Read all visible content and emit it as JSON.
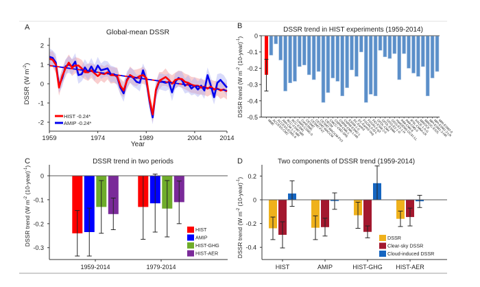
{
  "chart_data": [
    {
      "panel": "A",
      "type": "line",
      "title": "Global-mean DSSR",
      "xlabel": "Year",
      "ylabel": "DSSR (W m⁻²)",
      "xlim": [
        1959,
        2014
      ],
      "ylim": [
        -2.5,
        2.5
      ],
      "xticks": [
        1959,
        1974,
        1989,
        2004,
        2014
      ],
      "yticks": [
        2,
        1,
        0,
        -1,
        -2
      ],
      "legend_position": "bottom-left",
      "series": [
        {
          "name": "HIST",
          "legend": "HIST  -0.24*",
          "color": "#ff0000",
          "band_color": "#f4a6a6",
          "x": [
            1959,
            1960,
            1961,
            1962,
            1963,
            1964,
            1965,
            1966,
            1967,
            1968,
            1969,
            1970,
            1971,
            1972,
            1973,
            1974,
            1975,
            1976,
            1977,
            1978,
            1979,
            1980,
            1981,
            1982,
            1983,
            1984,
            1985,
            1986,
            1987,
            1988,
            1989,
            1990,
            1991,
            1992,
            1993,
            1994,
            1995,
            1996,
            1997,
            1998,
            1999,
            2000,
            2001,
            2002,
            2003,
            2004,
            2005,
            2006,
            2007,
            2008,
            2009,
            2010,
            2011,
            2012,
            2013,
            2014
          ],
          "y": [
            1.3,
            1.25,
            1.0,
            -0.2,
            0.4,
            0.8,
            1.1,
            0.85,
            0.95,
            0.95,
            0.8,
            0.6,
            0.6,
            0.7,
            0.55,
            0.4,
            0.55,
            0.5,
            0.6,
            0.45,
            0.45,
            0.4,
            -0.1,
            -0.35,
            0.15,
            0.45,
            0.35,
            0.3,
            0.4,
            0.45,
            0.3,
            -0.8,
            -1.6,
            -0.3,
            0.15,
            0.25,
            0.35,
            0.2,
            0.0,
            0.2,
            0.25,
            0.25,
            0.1,
            0.05,
            -0.05,
            -0.1,
            -0.1,
            -0.2,
            -0.15,
            -0.25,
            -0.15,
            -0.3,
            -0.25,
            -0.35,
            -0.3,
            -0.4
          ],
          "trend_start": 0.95,
          "trend_end": -0.35
        },
        {
          "name": "AMIP",
          "legend": "AMIP  -0.24*",
          "color": "#0000ee",
          "band_color": "#aab0f4",
          "x": [
            1959,
            1960,
            1961,
            1962,
            1963,
            1964,
            1965,
            1966,
            1967,
            1968,
            1969,
            1970,
            1971,
            1972,
            1973,
            1974,
            1975,
            1976,
            1977,
            1978,
            1979,
            1980,
            1981,
            1982,
            1983,
            1984,
            1985,
            1986,
            1987,
            1988,
            1989,
            1990,
            1991,
            1992,
            1993,
            1994,
            1995,
            1996,
            1997,
            1998,
            1999,
            2000,
            2001,
            2002,
            2003,
            2004,
            2005,
            2006,
            2007,
            2008,
            2009,
            2010,
            2011,
            2012,
            2013,
            2014
          ],
          "y": [
            1.4,
            1.35,
            1.1,
            -0.1,
            0.3,
            0.9,
            1.0,
            0.9,
            1.15,
            0.45,
            0.5,
            0.85,
            0.6,
            0.9,
            0.6,
            0.95,
            0.7,
            0.75,
            0.8,
            0.5,
            0.5,
            0.35,
            -0.2,
            -0.5,
            0.2,
            0.45,
            0.3,
            0.1,
            0.05,
            0.7,
            0.2,
            -0.9,
            -1.75,
            -0.35,
            0.1,
            0.1,
            0.05,
            0.1,
            -0.45,
            0.1,
            0.3,
            0.2,
            -0.1,
            0.0,
            -0.25,
            -0.1,
            -0.3,
            -0.1,
            -0.35,
            0.45,
            -0.1,
            -0.7,
            0.05,
            0.2,
            0.0,
            -0.2
          ],
          "trend_start": 0.95,
          "trend_end": -0.35
        }
      ],
      "panel_label": "A"
    },
    {
      "panel": "B",
      "type": "bar",
      "title": "DSSR trend in HIST experiments (1959-2014)",
      "ylabel": "DSSR trend (W m⁻² (10-year)⁻¹)",
      "ylim": [
        -0.5,
        0
      ],
      "yticks": [
        0,
        -0.1,
        -0.2,
        -0.3,
        -0.4,
        -0.5
      ],
      "categories": [
        "MME",
        "ACCESS-CM2",
        "ACCESS-ESM1-5",
        "AWI-CM-1-1-MR",
        "BCC-CSM2-MR",
        "BCC-ESM1",
        "CAMS-CSM1-0",
        "CanESM5",
        "CESM2",
        "CESM2-FV2",
        "CESM2-WACCM",
        "CESM2-WACCM-FV2",
        "CIESM",
        "CMCC-CM2-SR5",
        "CNRM-CM6-1",
        "CNRM-CM6-1-HR",
        "CNRM-ESM2-1",
        "E3SM-1-0",
        "EC-Earth3",
        "EC-Earth3-Veg",
        "FGOALS-f3-L",
        "FGOALS-g3",
        "FIO-ESM-2-0",
        "GFDL-CM4",
        "GFDL-ESM4",
        "GISS-E2-1-G",
        "GISS-E2-1-H",
        "HadGEM3-GC31-LL",
        "INM-CM4-8",
        "INM-CM5-0",
        "IPSL-CM6A-LR",
        "KACE-1-0-G",
        "MIROC6",
        "MIROC-ES2L",
        "MPI-ESM1-2-HR",
        "MPI-ESM1-2-LR",
        "MRI-ESM2-0"
      ],
      "values": [
        -0.24,
        -0.12,
        -0.05,
        -0.15,
        -0.34,
        -0.29,
        -0.28,
        -0.19,
        -0.18,
        -0.24,
        -0.27,
        -0.22,
        -0.41,
        -0.35,
        -0.26,
        -0.28,
        -0.37,
        -0.32,
        -0.21,
        -0.25,
        -0.1,
        -0.41,
        -0.36,
        -0.37,
        -0.09,
        -0.13,
        -0.14,
        -0.11,
        -0.27,
        -0.11,
        -0.2,
        -0.23,
        -0.25,
        -0.19,
        -0.37,
        -0.26,
        -0.22
      ],
      "colors": {
        "mme": "#ff0000",
        "model": "#5b8fc9"
      },
      "mme_error": [
        -0.34,
        -0.145
      ],
      "panel_label": "B"
    },
    {
      "panel": "C",
      "type": "bar",
      "title": "DSSR trend in two periods",
      "ylabel": "DSSR trend (W m⁻² (10-year)⁻¹)",
      "ylim": [
        -0.35,
        0.05
      ],
      "yticks": [
        0,
        -0.1,
        -0.2,
        -0.3
      ],
      "categories": [
        "1959-2014",
        "1979-2014"
      ],
      "legend_position": "bottom-right",
      "series": [
        {
          "name": "HIST",
          "color": "#ff0000",
          "values": [
            -0.24,
            -0.13
          ],
          "err_low": [
            -0.335,
            -0.265
          ],
          "err_high": [
            -0.145,
            0.0
          ]
        },
        {
          "name": "AMIP",
          "color": "#0000ff",
          "values": [
            -0.235,
            -0.115
          ],
          "err_low": [
            -0.335,
            -0.235
          ],
          "err_high": [
            -0.135,
            0.007
          ]
        },
        {
          "name": "HIST-GHG",
          "color": "#6fac2b",
          "values": [
            -0.13,
            -0.137
          ],
          "err_low": [
            -0.24,
            -0.255
          ],
          "err_high": [
            -0.02,
            -0.02
          ]
        },
        {
          "name": "HIST-AER",
          "color": "#7a2a99",
          "values": [
            -0.16,
            -0.11
          ],
          "err_low": [
            -0.225,
            -0.2
          ],
          "err_high": [
            -0.093,
            -0.022
          ]
        }
      ],
      "panel_label": "C"
    },
    {
      "panel": "D",
      "type": "bar",
      "title": "Two components of DSSR trend (1959-2014)",
      "ylabel": "DSSR trend (W m⁻² (10-year)⁻¹)",
      "ylim": [
        -0.5,
        0.3
      ],
      "yticks": [
        0.2,
        0,
        -0.2,
        -0.4
      ],
      "categories": [
        "HIST",
        "AMIP",
        "HIST-GHG",
        "HIST-AER"
      ],
      "legend_position": "bottom-right",
      "series": [
        {
          "name": "DSSR",
          "color": "#efb11c",
          "values": [
            -0.24,
            -0.235,
            -0.13,
            -0.16
          ],
          "err_low": [
            -0.335,
            -0.335,
            -0.24,
            -0.225
          ],
          "err_high": [
            -0.145,
            -0.135,
            -0.02,
            -0.095
          ]
        },
        {
          "name": "Clear-sky DSSR",
          "color": "#a3182f",
          "values": [
            -0.295,
            -0.23,
            -0.27,
            -0.145
          ],
          "err_low": [
            -0.405,
            -0.305,
            -0.32,
            -0.22
          ],
          "err_high": [
            -0.185,
            -0.155,
            -0.22,
            -0.07
          ]
        },
        {
          "name": "Cloud-induced DSSR",
          "color": "#1565c0",
          "values": [
            0.053,
            -0.01,
            0.14,
            -0.012
          ],
          "err_low": [
            -0.055,
            -0.08,
            0.0,
            -0.065
          ],
          "err_high": [
            0.16,
            0.058,
            0.285,
            0.038
          ]
        }
      ],
      "panel_label": "D"
    }
  ]
}
